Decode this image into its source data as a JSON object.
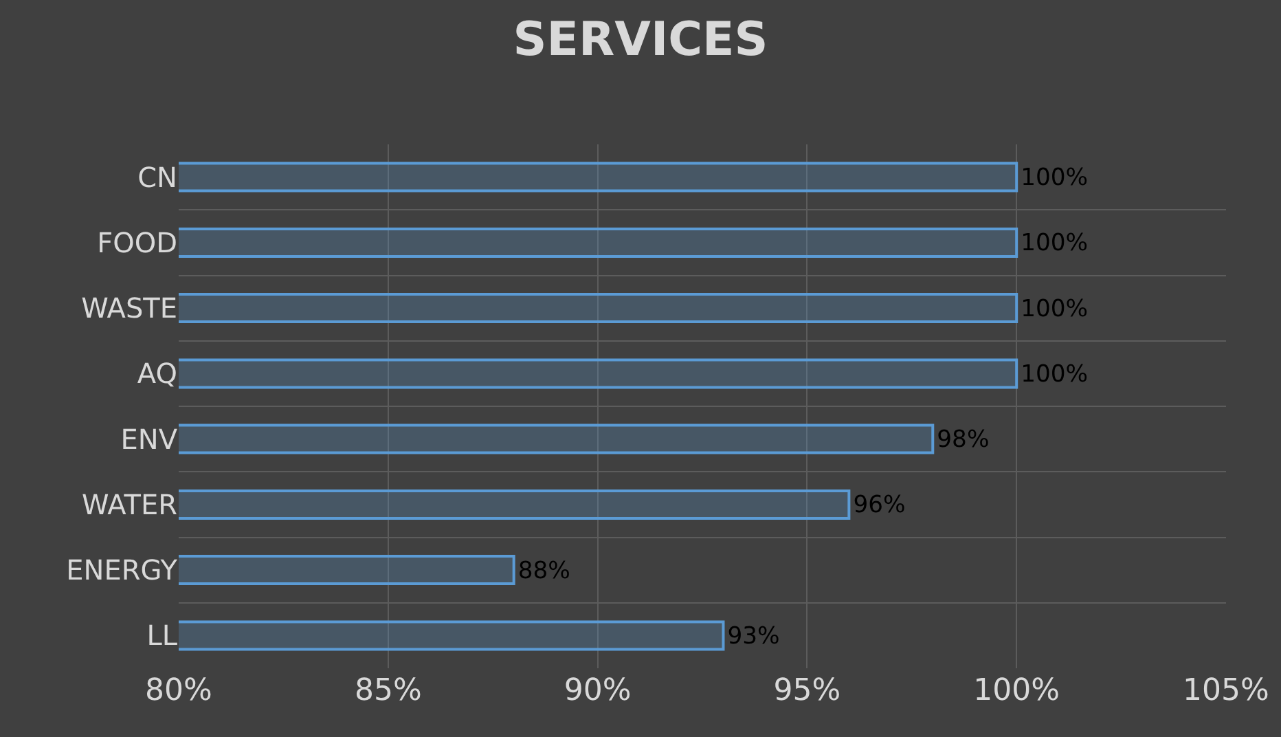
{
  "chart_data": {
    "type": "bar",
    "orientation": "horizontal",
    "title": "SERVICES",
    "categories": [
      "CN",
      "FOOD",
      "WASTE",
      "AQ",
      "ENV",
      "WATER",
      "ENERGY",
      "LL"
    ],
    "values": [
      100,
      100,
      100,
      100,
      98,
      96,
      88,
      93
    ],
    "value_labels": [
      "100%",
      "100%",
      "100%",
      "100%",
      "98%",
      "96%",
      "88%",
      "93%"
    ],
    "color": "#5b9bd5",
    "xlim": [
      80,
      105
    ],
    "xticks": [
      {
        "value": 80,
        "label": "80%"
      },
      {
        "value": 85,
        "label": "85%"
      },
      {
        "value": 90,
        "label": "90%"
      },
      {
        "value": 95,
        "label": "95%"
      },
      {
        "value": 100,
        "label": "100%"
      },
      {
        "value": 105,
        "label": "105%"
      }
    ],
    "grid": true
  }
}
